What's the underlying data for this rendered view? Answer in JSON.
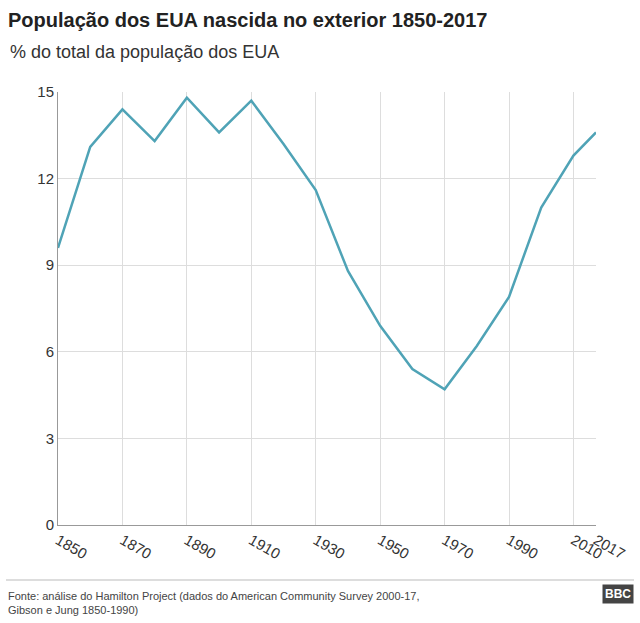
{
  "chart_data": {
    "type": "line",
    "title": "População dos EUA nascida no exterior 1850-2017",
    "subtitle": "% do total da população dos EUA",
    "x": [
      1850,
      1860,
      1870,
      1880,
      1890,
      1900,
      1910,
      1920,
      1930,
      1940,
      1950,
      1960,
      1970,
      1980,
      1990,
      2000,
      2010,
      2017
    ],
    "values": [
      9.6,
      13.1,
      14.4,
      13.3,
      14.8,
      13.6,
      14.7,
      13.2,
      11.6,
      8.8,
      6.9,
      5.4,
      4.7,
      6.2,
      7.9,
      11.0,
      12.8,
      13.6
    ],
    "color": "#4fa3b6",
    "xlim": [
      1850,
      2017
    ],
    "xticks": [
      1850,
      1870,
      1890,
      1910,
      1930,
      1950,
      1970,
      1990,
      2010,
      2017
    ],
    "ylim": [
      0,
      15
    ],
    "yticks": [
      0,
      3,
      6,
      9,
      12,
      15
    ],
    "grid": true,
    "source": "Fonte: análise do Hamilton Project (dados do American Community Survey 2000-17,\nGibson e Jung 1850-1990)",
    "logo": "BBC"
  }
}
